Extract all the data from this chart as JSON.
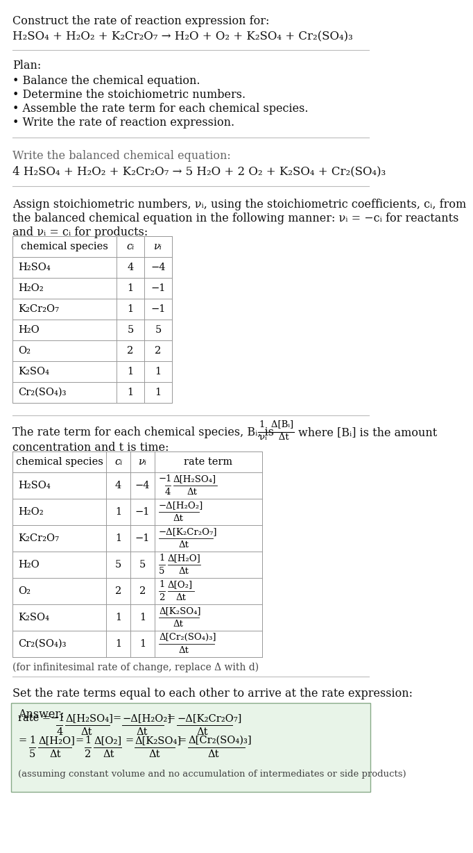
{
  "title_text": "Construct the rate of reaction expression for:",
  "reaction_unbalanced": "H₂SO₄ + H₂O₂ + K₂Cr₂O₇ → H₂O + O₂ + K₂SO₄ + Cr₂(SO₄)₃",
  "plan_header": "Plan:",
  "plan_items": [
    "• Balance the chemical equation.",
    "• Determine the stoichiometric numbers.",
    "• Assemble the rate term for each chemical species.",
    "• Write the rate of reaction expression."
  ],
  "balanced_label": "Write the balanced chemical equation:",
  "reaction_balanced": "4 H₂SO₄ + H₂O₂ + K₂Cr₂O₇ → 5 H₂O + 2 O₂ + K₂SO₄ + Cr₂(SO₄)₃",
  "assign_text1": "Assign stoichiometric numbers, νᵢ, using the stoichiometric coefficients, cᵢ, from",
  "assign_text2": "the balanced chemical equation in the following manner: νᵢ = −cᵢ for reactants",
  "assign_text3": "and νᵢ = cᵢ for products:",
  "table1_headers": [
    "chemical species",
    "cᵢ",
    "νᵢ"
  ],
  "table1_rows": [
    [
      "H₂SO₄",
      "4",
      "−4"
    ],
    [
      "H₂O₂",
      "1",
      "−1"
    ],
    [
      "K₂Cr₂O₇",
      "1",
      "−1"
    ],
    [
      "H₂O",
      "5",
      "5"
    ],
    [
      "O₂",
      "2",
      "2"
    ],
    [
      "K₂SO₄",
      "1",
      "1"
    ],
    [
      "Cr₂(SO₄)₃",
      "1",
      "1"
    ]
  ],
  "rate_intro": "The rate term for each chemical species, Bᵢ, is",
  "rate_after": "where [Bᵢ] is the amount",
  "rate_conc": "concentration and t is time:",
  "table2_headers": [
    "chemical species",
    "cᵢ",
    "νᵢ",
    "rate term"
  ],
  "table2_rows": [
    [
      "H₂SO₄",
      "4",
      "−4",
      "neg_quarter_H2SO4"
    ],
    [
      "H₂O₂",
      "1",
      "−1",
      "neg_H2O2"
    ],
    [
      "K₂Cr₂O₇",
      "1",
      "−1",
      "neg_K2Cr2O7"
    ],
    [
      "H₂O",
      "5",
      "5",
      "pos_fifth_H2O"
    ],
    [
      "O₂",
      "2",
      "2",
      "pos_half_O2"
    ],
    [
      "K₂SO₄",
      "1",
      "1",
      "pos_K2SO4"
    ],
    [
      "Cr₂(SO₄)₃",
      "1",
      "1",
      "pos_Cr2SO43"
    ]
  ],
  "infinitesimal_note": "(for infinitesimal rate of change, replace Δ with d)",
  "set_rate_text": "Set the rate terms equal to each other to arrive at the rate expression:",
  "answer_box_color": "#e8f4e8",
  "answer_border_color": "#88aa88",
  "answer_label": "Answer:",
  "answer_note": "(assuming constant volume and no accumulation of intermediates or side products)",
  "bg_color": "#ffffff",
  "sep_color": "#cccccc"
}
